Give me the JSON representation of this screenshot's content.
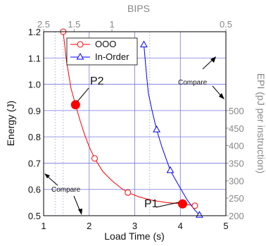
{
  "chart_data": {
    "type": "line",
    "xlabel": "Load Time (s)",
    "ylabel": "Energy (J)",
    "top_label": "BIPS",
    "right_label": "EPI (pJ per instruction)",
    "xlim": [
      1,
      5
    ],
    "ylim": [
      0.5,
      1.2
    ],
    "x_ticks": [
      1,
      2,
      3,
      4,
      5
    ],
    "y_ticks": [
      0.5,
      0.6,
      0.7,
      0.8,
      0.9,
      1.0,
      1.1,
      1.2
    ],
    "x_tick_labels": [
      "1",
      "2",
      "3",
      "4",
      "5"
    ],
    "y_tick_labels": [
      "0.5",
      "0.6",
      "0.7",
      "0.8",
      "0.9",
      "1.0",
      "1.1",
      "1.2"
    ],
    "top_ticks": [
      {
        "x": 1.0,
        "label": "2.5"
      },
      {
        "x": 1.67,
        "label": "1.5"
      },
      {
        "x": 2.5,
        "label": "1"
      },
      {
        "x": 5.0,
        "label": "0.5"
      }
    ],
    "top_minor_x": [
      1.25,
      1.43,
      2.0,
      3.33
    ],
    "right_ticks": [
      {
        "y": 0.5,
        "label": "200"
      },
      {
        "y": 0.567,
        "label": "250"
      },
      {
        "y": 0.633,
        "label": "300"
      },
      {
        "y": 0.7,
        "label": "350"
      },
      {
        "y": 0.767,
        "label": "400"
      },
      {
        "y": 0.833,
        "label": "450"
      },
      {
        "y": 0.9,
        "label": "500"
      }
    ],
    "series": [
      {
        "name": "OOO",
        "color": "#ff0000",
        "marker": "circle",
        "marker_points": [
          [
            1.43,
            1.2
          ],
          [
            1.7,
            0.922
          ],
          [
            2.12,
            0.718
          ],
          [
            2.85,
            0.588
          ],
          [
            4.05,
            0.545
          ],
          [
            4.32,
            0.538
          ]
        ],
        "curve": [
          [
            1.43,
            1.2
          ],
          [
            1.5,
            1.09
          ],
          [
            1.6,
            0.985
          ],
          [
            1.7,
            0.922
          ],
          [
            1.8,
            0.862
          ],
          [
            1.9,
            0.808
          ],
          [
            2.0,
            0.762
          ],
          [
            2.12,
            0.718
          ],
          [
            2.3,
            0.668
          ],
          [
            2.5,
            0.633
          ],
          [
            2.7,
            0.605
          ],
          [
            2.85,
            0.588
          ],
          [
            3.1,
            0.571
          ],
          [
            3.4,
            0.558
          ],
          [
            3.7,
            0.55
          ],
          [
            4.05,
            0.545
          ],
          [
            4.32,
            0.538
          ]
        ]
      },
      {
        "name": "In-Order",
        "color": "#0000ff",
        "marker": "triangle",
        "marker_points": [
          [
            3.2,
            1.15
          ],
          [
            3.48,
            0.827
          ],
          [
            3.78,
            0.672
          ],
          [
            4.42,
            0.502
          ]
        ],
        "curve": [
          [
            3.2,
            1.15
          ],
          [
            3.25,
            1.05
          ],
          [
            3.3,
            0.965
          ],
          [
            3.38,
            0.9
          ],
          [
            3.48,
            0.827
          ],
          [
            3.6,
            0.76
          ],
          [
            3.78,
            0.672
          ],
          [
            3.95,
            0.62
          ],
          [
            4.15,
            0.56
          ],
          [
            4.3,
            0.525
          ],
          [
            4.42,
            0.502
          ]
        ]
      }
    ],
    "highlight_points": [
      {
        "label": "P2",
        "x": 1.7,
        "y": 0.922
      },
      {
        "label": "P1",
        "x": 4.05,
        "y": 0.545
      }
    ],
    "annotations": [
      {
        "text": "Compare",
        "side": "left"
      },
      {
        "text": "Compare",
        "side": "right"
      }
    ],
    "grid": true,
    "legend_position": "top-left"
  }
}
